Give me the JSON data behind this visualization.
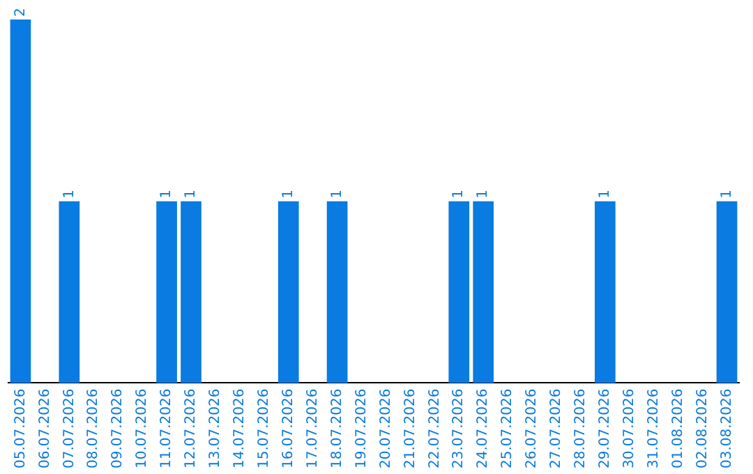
{
  "chart_data": {
    "type": "bar",
    "categories": [
      "05.07.2026",
      "06.07.2026",
      "07.07.2026",
      "08.07.2026",
      "09.07.2026",
      "10.07.2026",
      "11.07.2026",
      "12.07.2026",
      "13.07.2026",
      "14.07.2026",
      "15.07.2026",
      "16.07.2026",
      "17.07.2026",
      "18.07.2026",
      "19.07.2026",
      "20.07.2026",
      "21.07.2026",
      "22.07.2026",
      "23.07.2026",
      "24.07.2026",
      "25.07.2026",
      "26.07.2026",
      "27.07.2026",
      "28.07.2026",
      "29.07.2026",
      "30.07.2026",
      "31.07.2026",
      "01.08.2026",
      "02.08.2026",
      "03.08.2026"
    ],
    "values": [
      2,
      0,
      1,
      0,
      0,
      0,
      1,
      1,
      0,
      0,
      0,
      1,
      0,
      1,
      0,
      0,
      0,
      0,
      1,
      1,
      0,
      0,
      0,
      0,
      1,
      0,
      0,
      0,
      0,
      1
    ],
    "value_labels": [
      "2",
      null,
      "1",
      null,
      null,
      null,
      "1",
      "1",
      null,
      null,
      null,
      "1",
      null,
      "1",
      null,
      null,
      null,
      null,
      "1",
      "1",
      null,
      null,
      null,
      null,
      "1",
      null,
      null,
      null,
      null,
      "1"
    ],
    "color": "#0a7be0",
    "grid": false,
    "legend": false
  }
}
